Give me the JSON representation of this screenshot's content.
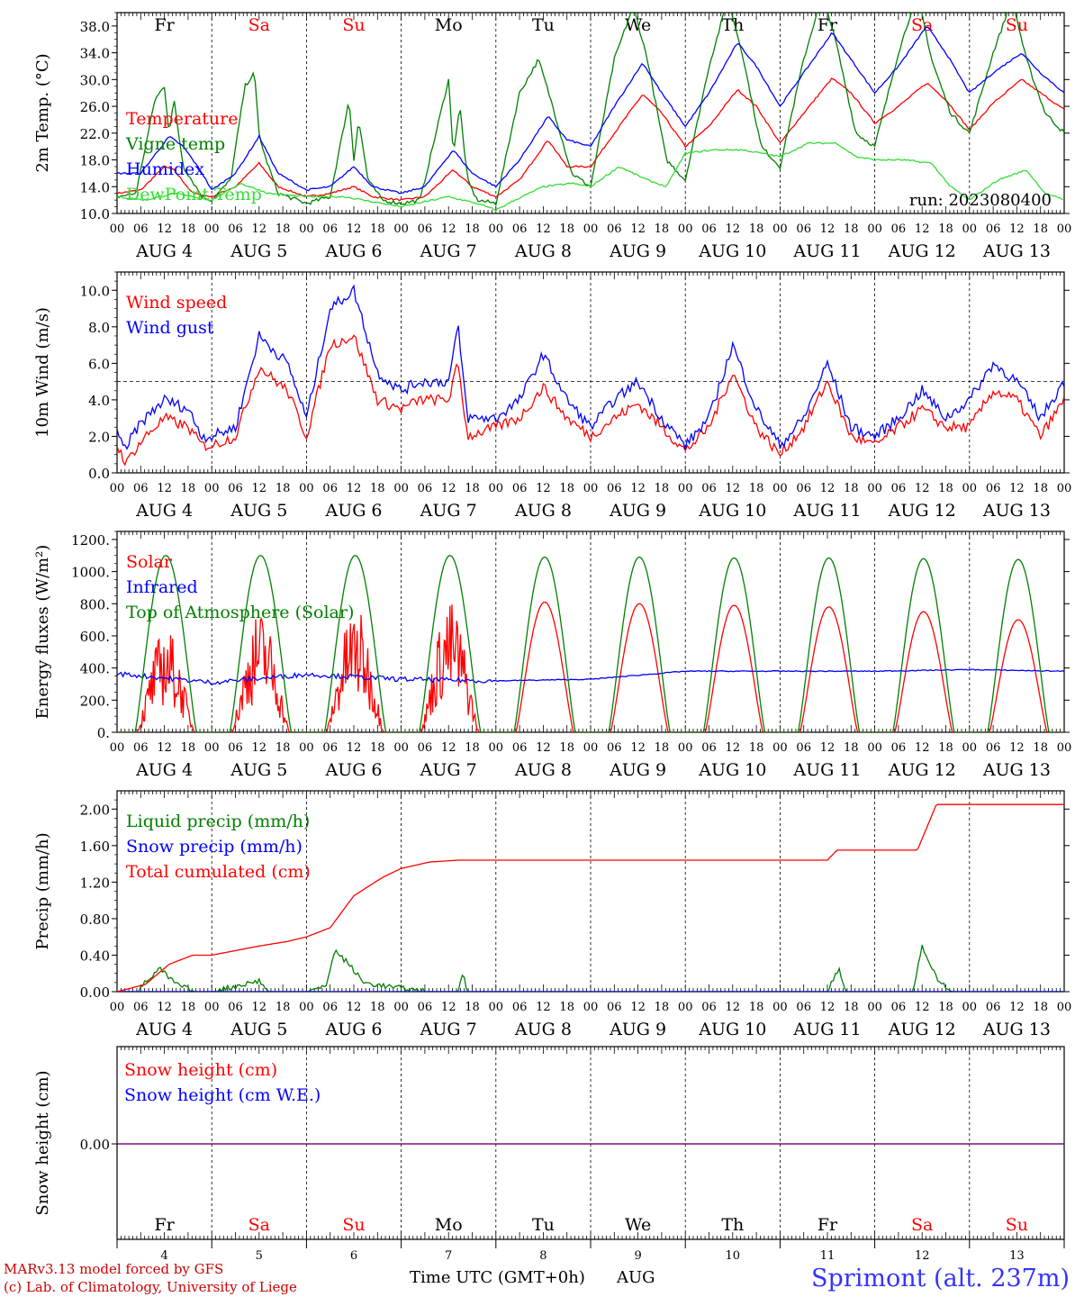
{
  "meta": {
    "run_label": "run: 2023080400",
    "footer_line1": "MARv3.13 model forced by GFS",
    "footer_line2": "(c) Lab. of Climatology, University of Liege",
    "xaxis_title": "Time UTC (GMT+0h)",
    "month": "AUG",
    "site": "Sprimont (alt. 237m)"
  },
  "days": [
    {
      "dow": "Fr",
      "date": "AUG  4",
      "num": "4",
      "weekend": false
    },
    {
      "dow": "Sa",
      "date": "AUG  5",
      "num": "5",
      "weekend": true
    },
    {
      "dow": "Su",
      "date": "AUG  6",
      "num": "6",
      "weekend": true
    },
    {
      "dow": "Mo",
      "date": "AUG  7",
      "num": "7",
      "weekend": false
    },
    {
      "dow": "Tu",
      "date": "AUG  8",
      "num": "8",
      "weekend": false
    },
    {
      "dow": "We",
      "date": "AUG  9",
      "num": "9",
      "weekend": false
    },
    {
      "dow": "Th",
      "date": "AUG 10",
      "num": "10",
      "weekend": false
    },
    {
      "dow": "Fr",
      "date": "AUG 11",
      "num": "11",
      "weekend": false
    },
    {
      "dow": "Sa",
      "date": "AUG 12",
      "num": "12",
      "weekend": true
    },
    {
      "dow": "Su",
      "date": "AUG 13",
      "num": "13",
      "weekend": true
    }
  ],
  "hour_ticks": [
    "00",
    "06",
    "12",
    "18"
  ],
  "colors": {
    "red": "#ff0000",
    "green": "#008000",
    "blue": "#0000ff",
    "lightgreen": "#33dd33",
    "purple": "#800080",
    "weekend": "#ff0000",
    "weekday": "#000000"
  },
  "chart_data": [
    {
      "type": "line",
      "ylabel": "2m Temp. (°C)",
      "ylim": [
        10,
        40
      ],
      "yticks": [
        "10.0",
        "14.0",
        "18.0",
        "22.0",
        "26.0",
        "30.0",
        "34.0",
        "38.0"
      ],
      "x_units": "days since AUG 4 00 UTC",
      "series": [
        {
          "name": "Temperature",
          "color": "#ff0000",
          "x": [
            0,
            0.25,
            0.5,
            0.6,
            0.8,
            1,
            1.25,
            1.5,
            1.7,
            2,
            2.25,
            2.5,
            2.7,
            3,
            3.25,
            3.55,
            3.75,
            4,
            4.25,
            4.55,
            4.75,
            5,
            5.25,
            5.55,
            5.75,
            6,
            6.25,
            6.55,
            6.75,
            7,
            7.25,
            7.55,
            7.75,
            8,
            8.25,
            8.55,
            8.75,
            9,
            9.25,
            9.55,
            9.75,
            10
          ],
          "y": [
            13,
            13.5,
            17,
            16.5,
            13,
            12.5,
            14,
            17.5,
            14,
            12.5,
            13,
            14,
            12.5,
            12,
            12.5,
            16.5,
            14,
            12.5,
            15,
            21,
            17,
            17,
            22,
            27.8,
            25,
            20,
            23,
            28.5,
            26,
            20.5,
            25,
            30.2,
            28,
            23.5,
            26,
            29.5,
            27,
            22.5,
            26.5,
            30,
            28,
            25.5
          ]
        },
        {
          "name": "Vigne temp",
          "color": "#008000",
          "x": [
            0,
            0.2,
            0.4,
            0.5,
            0.55,
            0.6,
            0.7,
            0.9,
            1,
            1.2,
            1.35,
            1.45,
            1.5,
            1.55,
            1.7,
            1.9,
            2,
            2.25,
            2.45,
            2.5,
            2.55,
            2.65,
            2.8,
            3,
            3.2,
            3.5,
            3.55,
            3.62,
            3.7,
            3.8,
            4,
            4.25,
            4.45,
            4.6,
            4.8,
            5,
            5.25,
            5.45,
            5.6,
            5.8,
            6,
            6.25,
            6.45,
            6.6,
            6.8,
            7,
            7.25,
            7.45,
            7.6,
            7.8,
            8,
            8.25,
            8.45,
            8.6,
            8.8,
            9,
            9.25,
            9.45,
            9.6,
            9.8,
            10
          ],
          "y": [
            12.5,
            13,
            27,
            29,
            22,
            27,
            17,
            12.5,
            12,
            15,
            29,
            31,
            22,
            19,
            13,
            12,
            11.5,
            12.5,
            27,
            18,
            24,
            15,
            12,
            11.5,
            12,
            30,
            19,
            26,
            15,
            12,
            11.5,
            28,
            33,
            26,
            16,
            14,
            33,
            41,
            33,
            18,
            15,
            32,
            42,
            34,
            20,
            17,
            33,
            43,
            35,
            22,
            20,
            34,
            43,
            33,
            25,
            22,
            34,
            42,
            33,
            25,
            22
          ]
        },
        {
          "name": "Humidex",
          "color": "#0000ff",
          "x": [
            0,
            0.25,
            0.55,
            0.7,
            0.9,
            1,
            1.25,
            1.5,
            1.7,
            2,
            2.25,
            2.5,
            2.7,
            3,
            3.25,
            3.55,
            3.75,
            4,
            4.25,
            4.55,
            4.75,
            5,
            5.25,
            5.55,
            5.75,
            6,
            6.25,
            6.55,
            6.75,
            7,
            7.25,
            7.55,
            7.75,
            8,
            8.25,
            8.55,
            8.75,
            9,
            9.25,
            9.55,
            9.75,
            10
          ],
          "y": [
            16,
            16,
            21.5,
            20,
            16,
            13.5,
            16,
            21.5,
            16,
            13.5,
            14,
            17,
            14,
            13,
            14,
            19.5,
            16,
            14,
            18,
            24.5,
            21,
            20,
            26,
            32.5,
            28,
            23,
            28,
            35.5,
            32,
            26,
            31,
            37,
            33,
            28,
            32,
            38,
            34,
            28,
            31,
            34,
            31,
            28
          ]
        },
        {
          "name": "DewPoint Temp",
          "color": "#33dd33",
          "x": [
            0,
            0.3,
            0.6,
            1,
            1.3,
            1.6,
            2,
            2.4,
            2.8,
            3,
            3.5,
            3.8,
            4,
            4.2,
            4.5,
            4.8,
            5,
            5.3,
            5.6,
            5.8,
            6,
            6.3,
            6.6,
            7,
            7.3,
            7.6,
            7.8,
            8,
            8.3,
            8.6,
            8.8,
            9,
            9.3,
            9.6,
            9.8,
            10
          ],
          "y": [
            12.5,
            12,
            13,
            12,
            14.5,
            13,
            12.5,
            12.5,
            11.5,
            11,
            12.5,
            11.5,
            10.5,
            12,
            14,
            14.5,
            14,
            17,
            15,
            14,
            19,
            19.5,
            19.5,
            18.5,
            20.5,
            20.5,
            18.5,
            18,
            18,
            17.5,
            14,
            12,
            15,
            16.5,
            13,
            12
          ]
        }
      ]
    },
    {
      "type": "line",
      "ylabel": "10m Wind (m/s)",
      "ylim": [
        0,
        11
      ],
      "yticks": [
        "0.0",
        "2.0",
        "4.0",
        "6.0",
        "8.0",
        "10.0"
      ],
      "x_units": "days since AUG 4 00 UTC",
      "series": [
        {
          "name": "Wind speed",
          "color": "#ff0000",
          "x": [
            0,
            0.1,
            0.15,
            0.3,
            0.5,
            0.75,
            0.9,
            1,
            1.25,
            1.5,
            1.8,
            2,
            2.25,
            2.5,
            2.75,
            3,
            3.2,
            3.5,
            3.6,
            3.7,
            4,
            4.25,
            4.5,
            4.75,
            5,
            5.25,
            5.5,
            5.75,
            6,
            6.25,
            6.5,
            6.75,
            7,
            7.25,
            7.5,
            7.75,
            8,
            8.25,
            8.5,
            8.75,
            9,
            9.25,
            9.5,
            9.75,
            10
          ],
          "y": [
            1.5,
            0.5,
            1,
            2,
            3,
            2.5,
            1.5,
            1.5,
            2,
            5.8,
            4.5,
            2,
            7,
            7.5,
            4,
            3.5,
            4,
            4,
            6,
            2,
            2.5,
            3,
            4.7,
            3,
            2,
            3,
            3.8,
            2.5,
            1.2,
            2.5,
            5.5,
            2.5,
            1,
            2.5,
            5,
            2,
            1.5,
            2.5,
            3.5,
            2.5,
            2.5,
            4.5,
            4,
            2,
            4
          ]
        },
        {
          "name": "Wind gust",
          "color": "#0000ff",
          "x": [
            0,
            0.1,
            0.15,
            0.3,
            0.5,
            0.75,
            0.9,
            1,
            1.25,
            1.5,
            1.8,
            2,
            2.25,
            2.5,
            2.75,
            3,
            3.2,
            3.5,
            3.6,
            3.7,
            4,
            4.25,
            4.5,
            4.75,
            5,
            5.25,
            5.5,
            5.75,
            6,
            6.25,
            6.5,
            6.75,
            7,
            7.25,
            7.5,
            7.75,
            8,
            8.25,
            8.5,
            8.75,
            9,
            9.25,
            9.5,
            9.75,
            10
          ],
          "y": [
            2.5,
            1,
            2,
            3,
            4,
            3.5,
            2,
            2,
            2.5,
            7.5,
            6,
            3,
            9,
            10,
            5.5,
            4.5,
            5,
            5,
            8,
            3,
            3,
            4,
            6.5,
            4,
            2.5,
            4,
            5,
            3,
            1.5,
            3,
            7,
            3.5,
            1.5,
            3,
            6,
            2.5,
            2,
            3,
            4.5,
            3,
            4,
            6,
            5,
            3,
            5
          ]
        }
      ]
    },
    {
      "type": "line",
      "ylabel": "Energy fluxes (W/m²)",
      "ylim": [
        0,
        1250
      ],
      "yticks": [
        "0.",
        "200.",
        "400.",
        "600.",
        "800.",
        "1000.",
        "1200."
      ],
      "x_units": "days since AUG 4 00 UTC",
      "series": [
        {
          "name": "Solar",
          "color": "#ff0000",
          "day_peaks": [
            650,
            760,
            780,
            820,
            810,
            800,
            790,
            780,
            750,
            700
          ]
        },
        {
          "name": "Infrared",
          "color": "#0000ff",
          "x": [
            0,
            1,
            2,
            3,
            4,
            5,
            6,
            7,
            8,
            9,
            10
          ],
          "y": [
            365,
            310,
            360,
            330,
            320,
            330,
            380,
            380,
            380,
            390,
            380
          ]
        },
        {
          "name": "Top of Atmosphere (Solar)",
          "color": "#008000",
          "day_peaks": [
            1100,
            1100,
            1100,
            1100,
            1090,
            1090,
            1085,
            1085,
            1080,
            1075
          ]
        }
      ]
    },
    {
      "type": "line",
      "ylabel": "Precip (mm/h)",
      "ylim": [
        0,
        2.2
      ],
      "yticks": [
        "0.00",
        "0.40",
        "0.80",
        "1.20",
        "1.60",
        "2.00"
      ],
      "x_units": "days since AUG 4 00 UTC",
      "series": [
        {
          "name": "Liquid precip (mm/h)",
          "color": "#008000",
          "x": [
            0,
            0.2,
            0.45,
            0.6,
            0.8,
            1,
            1.5,
            1.6,
            2,
            2.2,
            2.3,
            2.45,
            2.6,
            2.9,
            3.3,
            3.6,
            3.65,
            3.7,
            4,
            7.5,
            7.62,
            7.7,
            8,
            8.4,
            8.5,
            8.65,
            8.8,
            10
          ],
          "y": [
            0,
            0,
            0.25,
            0.1,
            0,
            0,
            0.12,
            0,
            0,
            0.05,
            0.45,
            0.3,
            0.1,
            0.05,
            0,
            0,
            0.2,
            0,
            0,
            0,
            0.25,
            0,
            0,
            0,
            0.5,
            0.15,
            0,
            0
          ]
        },
        {
          "name": "Snow precip (mm/h)",
          "color": "#0000ff",
          "x": [
            0,
            10
          ],
          "y": [
            0,
            0
          ]
        },
        {
          "name": "Total cumulated (cm)",
          "color": "#ff0000",
          "x": [
            0,
            0.3,
            0.55,
            0.8,
            1,
            1.5,
            1.8,
            2,
            2.25,
            2.5,
            2.8,
            3,
            3.3,
            3.6,
            4,
            7.5,
            7.6,
            8,
            8.45,
            8.65,
            10
          ],
          "y": [
            0,
            0.08,
            0.3,
            0.4,
            0.4,
            0.5,
            0.55,
            0.6,
            0.7,
            1.05,
            1.25,
            1.35,
            1.42,
            1.44,
            1.44,
            1.44,
            1.55,
            1.55,
            1.55,
            2.05,
            2.05
          ]
        }
      ]
    },
    {
      "type": "line",
      "ylabel": "Snow height (cm)",
      "yticks": [
        "0.00"
      ],
      "x_units": "days since AUG 4 00 UTC",
      "series": [
        {
          "name": "Snow height (cm)",
          "color": "#ff0000",
          "x": [
            0,
            10
          ],
          "y": [
            0,
            0
          ]
        },
        {
          "name": "Snow height (cm W.E.)",
          "color": "#0000ff",
          "x": [
            0,
            10
          ],
          "y": [
            0,
            0
          ]
        }
      ]
    }
  ]
}
